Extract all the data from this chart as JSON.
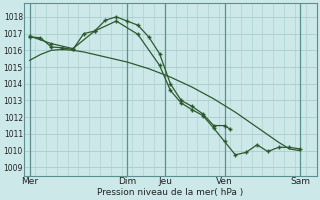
{
  "xlabel": "Pression niveau de la mer( hPa )",
  "bg_color": "#cce8e8",
  "grid_color": "#aacccc",
  "line_color": "#2d5a2d",
  "vline_color": "#5a9090",
  "ylim": [
    1008.5,
    1018.8
  ],
  "xlim": [
    0,
    27
  ],
  "yticks": [
    1009,
    1010,
    1011,
    1012,
    1013,
    1014,
    1015,
    1016,
    1017,
    1018
  ],
  "day_labels": [
    "Mer",
    "Dim",
    "Jeu",
    "Ven",
    "Sam"
  ],
  "day_x": [
    0.5,
    9.5,
    13.0,
    18.5,
    25.5
  ],
  "vline_x": [
    0.5,
    9.5,
    13.0,
    18.5,
    25.5
  ],
  "line1_x": [
    0.5,
    1.5,
    2.5,
    3.5,
    4.5,
    5.5,
    6.5,
    7.5,
    8.5,
    9.5,
    10.5,
    11.5,
    12.5,
    13.5,
    14.5,
    15.5,
    16.5,
    17.5,
    18.5,
    19.5,
    20.5,
    21.5,
    22.5,
    23.5,
    24.5,
    25.5
  ],
  "line1_y": [
    1015.4,
    1015.75,
    1016.0,
    1016.05,
    1016.0,
    1015.9,
    1015.75,
    1015.6,
    1015.45,
    1015.3,
    1015.1,
    1014.9,
    1014.65,
    1014.4,
    1014.1,
    1013.8,
    1013.45,
    1013.1,
    1012.7,
    1012.3,
    1011.85,
    1011.4,
    1010.95,
    1010.5,
    1010.1,
    1010.0
  ],
  "line2_x": [
    0.5,
    1.5,
    2.5,
    3.5,
    4.5,
    5.5,
    6.5,
    7.5,
    8.5,
    9.5,
    10.5,
    11.5,
    12.5,
    13.5,
    14.5,
    15.5,
    16.5,
    17.5,
    18.5,
    19.0
  ],
  "line2_y": [
    1016.8,
    1016.75,
    1016.2,
    1016.15,
    1016.05,
    1017.0,
    1017.15,
    1017.8,
    1018.0,
    1017.75,
    1017.5,
    1016.8,
    1015.8,
    1014.0,
    1013.0,
    1012.65,
    1012.2,
    1011.5,
    1011.5,
    1011.3
  ],
  "line3_x": [
    0.5,
    1.5,
    2.5,
    3.5,
    4.5,
    5.5,
    6.5,
    7.5,
    8.5,
    9.5,
    10.5,
    11.5,
    12.5,
    13.5,
    14.5,
    15.5,
    16.5,
    17.5,
    18.5,
    19.5,
    20.5,
    21.5,
    22.5,
    23.5,
    24.5,
    25.5
  ],
  "line3_x_pts": [
    0.5,
    2.5,
    4.5,
    6.5,
    8.5,
    10.5,
    12.5,
    13.5,
    14.5,
    15.5,
    16.5,
    17.5,
    18.5,
    19.5,
    20.5,
    21.5,
    22.5,
    23.5,
    24.5,
    25.5
  ],
  "line3_y_pts": [
    1016.85,
    1016.4,
    1016.1,
    1017.15,
    1017.75,
    1016.95,
    1015.1,
    1013.6,
    1012.85,
    1012.45,
    1012.1,
    1011.35,
    1010.55,
    1009.75,
    1009.9,
    1010.35,
    1009.95,
    1010.2,
    1010.2,
    1010.1
  ]
}
